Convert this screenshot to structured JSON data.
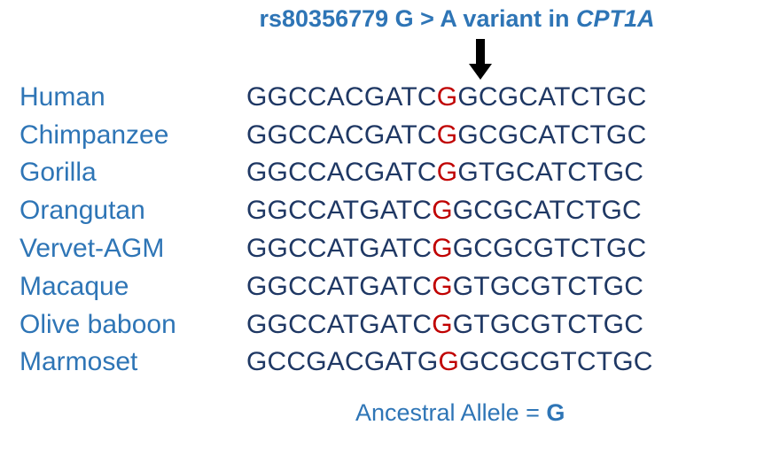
{
  "title": {
    "prefix": "rs80356779 G > A variant in ",
    "gene": "CPT1A"
  },
  "rows": [
    {
      "species": "Human",
      "pre": "GGCCACGATC",
      "variant": "G",
      "post": "GCGCATCTGC"
    },
    {
      "species": "Chimpanzee",
      "pre": "GGCCACGATC",
      "variant": "G",
      "post": "GCGCATCTGC"
    },
    {
      "species": "Gorilla",
      "pre": "GGCCACGATC",
      "variant": "G",
      "post": "GTGCATCTGC"
    },
    {
      "species": "Orangutan",
      "pre": "GGCCATGATC",
      "variant": "G",
      "post": "GCGCATCTGC"
    },
    {
      "species": "Vervet-AGM",
      "pre": "GGCCATGATC",
      "variant": "G",
      "post": "GCGCGTCTGC"
    },
    {
      "species": "Macaque",
      "pre": "GGCCATGATC",
      "variant": "G",
      "post": "GTGCGTCTGC"
    },
    {
      "species": "Olive baboon",
      "pre": "GGCCATGATC",
      "variant": "G",
      "post": "GTGCGTCTGC"
    },
    {
      "species": "Marmoset",
      "pre": "GCCGACGATG",
      "variant": "G",
      "post": "GCGCGTCTGC"
    }
  ],
  "footer": {
    "label": "Ancestral Allele = ",
    "allele": "G"
  },
  "colors": {
    "species": "#2e75b6",
    "sequence": "#1f3864",
    "variant": "#c00000",
    "arrow": "#000000"
  }
}
